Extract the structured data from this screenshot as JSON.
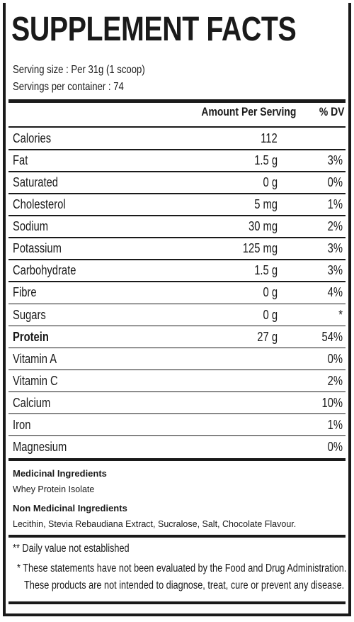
{
  "header": {
    "title": "SUPPLEMENT FACTS",
    "serving_size": "Serving size : Per 31g (1 scoop)",
    "servings_per_container": "Servings per container : 74"
  },
  "table": {
    "columns": [
      "Amount Per Serving",
      "% DV"
    ],
    "rows": [
      {
        "name": "Calories",
        "amount": "112",
        "dv": null,
        "bold": false
      },
      {
        "name": "Fat",
        "amount": "1.5 g",
        "dv": "3%",
        "bold": false
      },
      {
        "name": "Saturated",
        "amount": "0 g",
        "dv": "0%",
        "bold": false
      },
      {
        "name": "Cholesterol",
        "amount": "5 mg",
        "dv": "1%",
        "bold": false
      },
      {
        "name": "Sodium",
        "amount": "30 mg",
        "dv": "2%",
        "bold": false
      },
      {
        "name": "Potassium",
        "amount": "125 mg",
        "dv": "3%",
        "bold": false
      },
      {
        "name": "Carbohydrate",
        "amount": "1.5 g",
        "dv": "3%",
        "bold": false
      },
      {
        "name": "Fibre",
        "amount": "0 g",
        "dv": "4%",
        "bold": false
      },
      {
        "name": "Sugars",
        "amount": "0 g",
        "dv": "*",
        "bold": false
      },
      {
        "name": "Protein",
        "amount": "27 g",
        "dv": "54%",
        "bold": true
      },
      {
        "name": "Vitamin A",
        "amount": null,
        "dv": "0%",
        "bold": false
      },
      {
        "name": "Vitamin C",
        "amount": null,
        "dv": "2%",
        "bold": false
      },
      {
        "name": "Calcium",
        "amount": null,
        "dv": "10%",
        "bold": false
      },
      {
        "name": "Iron",
        "amount": null,
        "dv": "1%",
        "bold": false
      },
      {
        "name": "Magnesium",
        "amount": null,
        "dv": "0%",
        "bold": false
      }
    ]
  },
  "ingredients": {
    "medicinal_heading": "Medicinal Ingredients",
    "medicinal": "Whey Protein Isolate",
    "non_medicinal_heading": "Non Medicinal Ingredients",
    "non_medicinal": "Lecithin, Stevia Rebaudiana Extract, Sucralose, Salt, Chocolate Flavour."
  },
  "footnotes": [
    "** Daily value not established",
    "* These statements have not been evaluated by the Food and Drug Administration.",
    "These products are not intended to diagnose, treat, cure or prevent any disease."
  ]
}
